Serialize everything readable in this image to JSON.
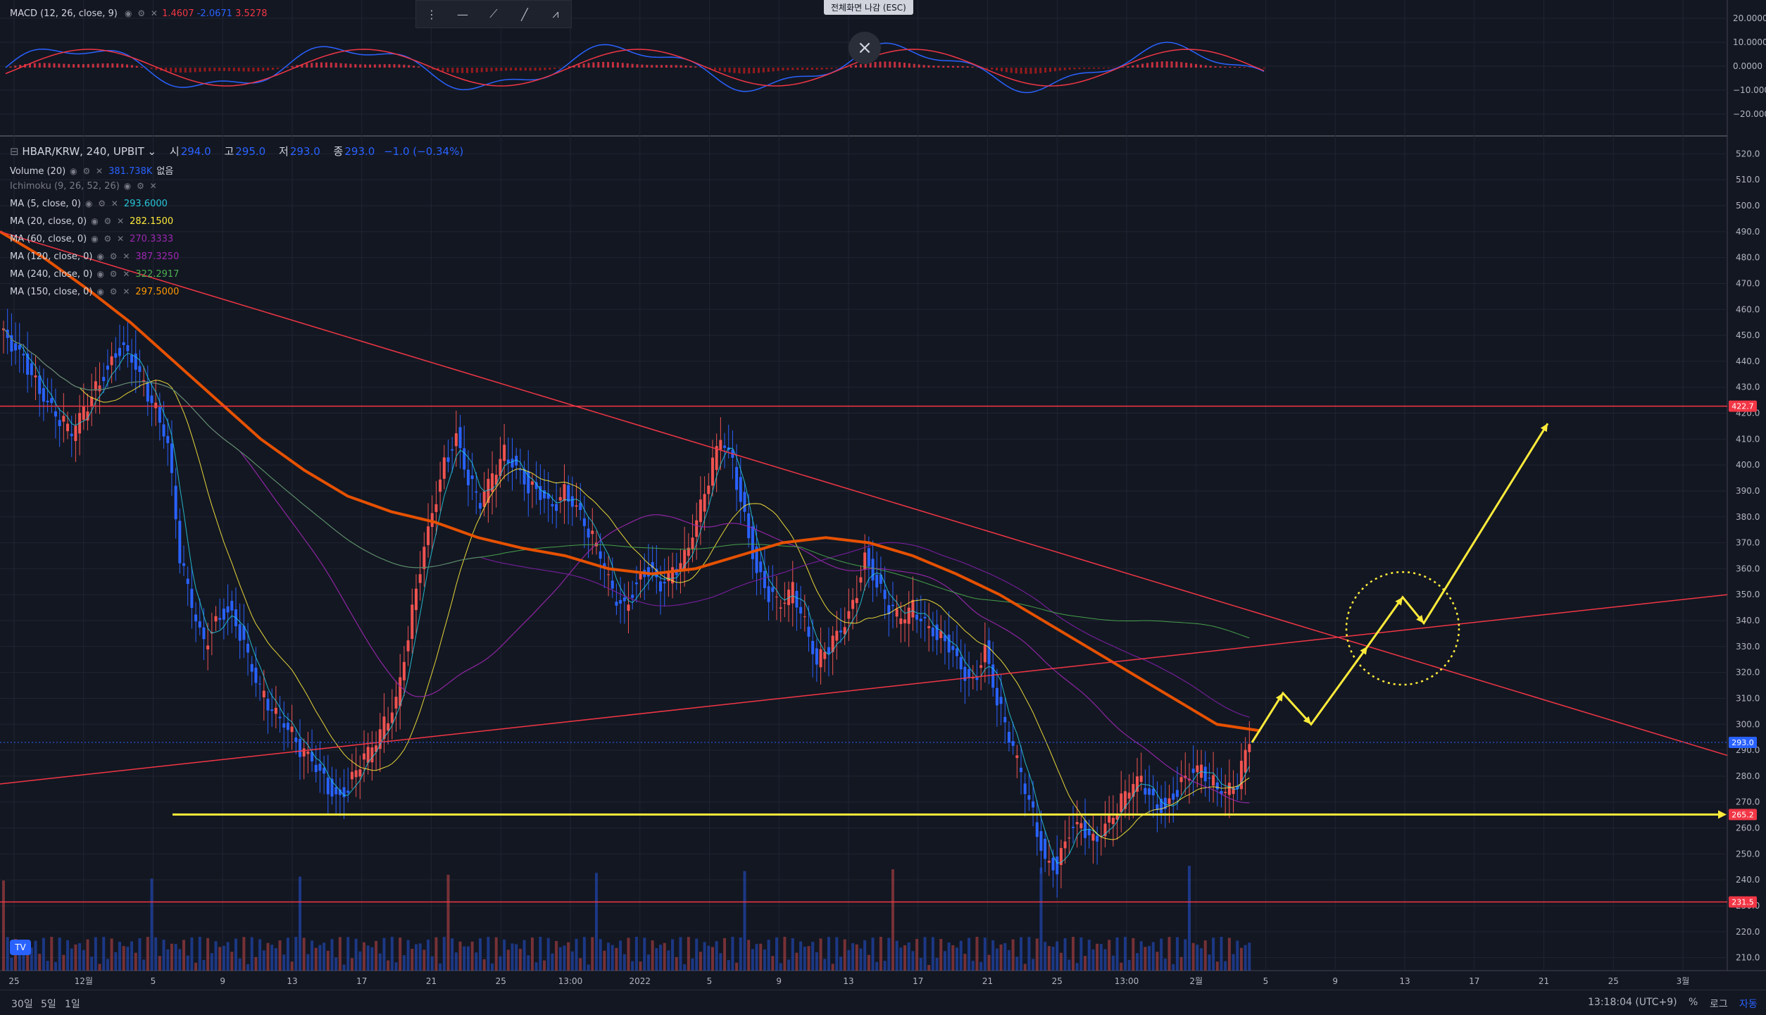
{
  "macd": {
    "label": "MACD (12, 26, close, 9)",
    "values": [
      "1.4607",
      "-2.0671",
      "3.5278"
    ],
    "value_colors": [
      "#f23645",
      "#2962ff",
      "#f23645"
    ],
    "axis_ticks": [
      "20.0000",
      "10.0000",
      "0.0000",
      "−10.0000",
      "−20.0000"
    ]
  },
  "symbol": {
    "title": "HBAR/KRW, 240, UPBIT",
    "open_label": "시",
    "open": "294.0",
    "high_label": "고",
    "high": "295.0",
    "low_label": "저",
    "low": "293.0",
    "close_label": "종",
    "close": "293.0",
    "change": "−1.0 (−0.34%)"
  },
  "indicators": [
    {
      "label": "Volume (20)",
      "value": "381.738K",
      "extra": "없음",
      "color": "#2962ff"
    },
    {
      "label": "Ichimoku (9, 26, 52, 26)",
      "value": "",
      "extra": "",
      "color": "#787b86"
    },
    {
      "label": "MA (5, close, 0)",
      "value": "293.6000",
      "extra": "",
      "color": "#26c6da"
    },
    {
      "label": "MA (20, close, 0)",
      "value": "282.1500",
      "extra": "",
      "color": "#ffeb3b"
    },
    {
      "label": "MA (60, close, 0)",
      "value": "270.3333",
      "extra": "",
      "color": "#9c27b0"
    },
    {
      "label": "MA (120, close, 0)",
      "value": "387.3250",
      "extra": "",
      "color": "#9c27b0"
    },
    {
      "label": "MA (240, close, 0)",
      "value": "322.2917",
      "extra": "",
      "color": "#4caf50"
    },
    {
      "label": "MA (150, close, 0)",
      "value": "297.5000",
      "extra": "",
      "color": "#ff9800"
    }
  ],
  "toolbar": {
    "icons": [
      "drag-handle-icon",
      "horizontal-line-icon",
      "trend-angle-icon",
      "trend-line-icon",
      "pattern-abcd-icon"
    ],
    "fullscreen_hint": "전체화면 나감 (ESC)",
    "close_symbol": "×"
  },
  "chart_data": {
    "type": "candlestick",
    "symbol": "HBAR/KRW",
    "interval": "240",
    "price_axis": {
      "ticks": [
        520,
        510,
        500,
        490,
        480,
        470,
        460,
        450,
        440,
        430,
        420,
        410,
        400,
        390,
        380,
        370,
        360,
        350,
        340,
        330,
        320,
        310,
        300,
        290,
        280,
        270,
        260,
        250,
        240,
        230,
        220,
        210
      ],
      "tick_labels": [
        "520.0",
        "510.0",
        "500.0",
        "490.0",
        "480.0",
        "470.0",
        "460.0",
        "450.0",
        "440.0",
        "430.0",
        "420.0",
        "410.0",
        "400.0",
        "390.0",
        "380.0",
        "370.0",
        "360.0",
        "350.0",
        "340.0",
        "330.0",
        "320.0",
        "310.0",
        "300.0",
        "290.0",
        "280.0",
        "270.0",
        "260.0",
        "250.0",
        "240.0",
        "230.0",
        "220.0",
        "210.0"
      ],
      "ylim": [
        205,
        525
      ]
    },
    "time_axis_labels": [
      "25",
      "12월",
      "5",
      "9",
      "13",
      "17",
      "21",
      "25",
      "13:00",
      "2022",
      "5",
      "9",
      "13",
      "17",
      "21",
      "25",
      "13:00",
      "2월",
      "5",
      "9",
      "13",
      "17",
      "21",
      "25",
      "3월"
    ],
    "price_markers": [
      {
        "value": "422.7",
        "color": "#f23645"
      },
      {
        "value": "293.0",
        "color": "#2962ff"
      },
      {
        "value": "265.2",
        "color": "#f23645"
      },
      {
        "value": "231.5",
        "color": "#f23645"
      }
    ],
    "price_path": [
      452,
      445,
      440,
      432,
      425,
      418,
      412,
      420,
      430,
      438,
      445,
      440,
      430,
      422,
      410,
      365,
      345,
      330,
      340,
      345,
      335,
      320,
      310,
      305,
      300,
      290,
      285,
      278,
      272,
      276,
      285,
      290,
      300,
      310,
      335,
      360,
      380,
      400,
      412,
      395,
      385,
      395,
      405,
      400,
      392,
      388,
      382,
      390,
      385,
      375,
      365,
      350,
      345,
      355,
      360,
      352,
      358,
      365,
      380,
      395,
      410,
      400,
      380,
      360,
      350,
      345,
      352,
      340,
      325,
      330,
      335,
      345,
      365,
      355,
      345,
      340,
      345,
      340,
      335,
      330,
      320,
      315,
      330,
      310,
      295,
      280,
      265,
      248,
      245,
      258,
      260,
      255,
      262,
      268,
      275,
      278,
      270,
      268,
      275,
      280,
      282,
      278,
      275,
      278,
      293
    ],
    "series": [
      {
        "name": "MA (5, close, 0)",
        "color": "#26c6da",
        "last": 293.6
      },
      {
        "name": "MA (20, close, 0)",
        "color": "#ffeb3b",
        "last": 282.15
      },
      {
        "name": "MA (60, close, 0)",
        "color": "#9c27b0",
        "last": 270.3333
      },
      {
        "name": "MA (120, close, 0)",
        "color": "#9c27b0",
        "last": 387.325
      },
      {
        "name": "MA (240, close, 0)",
        "color": "#4caf50",
        "last": 322.2917
      },
      {
        "name": "MA (150, close, 0)",
        "color": "#ff9800",
        "last": 297.5
      }
    ],
    "ma150_path": [
      490,
      480,
      468,
      455,
      440,
      425,
      410,
      398,
      388,
      382,
      378,
      372,
      368,
      365,
      360,
      358,
      360,
      365,
      370,
      372,
      370,
      365,
      358,
      350,
      340,
      330,
      320,
      310,
      300,
      297.5
    ],
    "support_levels": [
      265.2
    ],
    "resistance_levels": [
      422.7,
      231.5
    ],
    "descending_trendline": [
      [
        0,
        490
      ],
      [
        1,
        288
      ]
    ],
    "ascending_trendline": [
      [
        0,
        277
      ],
      [
        1,
        350
      ]
    ],
    "projection_path": [
      293,
      312,
      300,
      330,
      349,
      339,
      416
    ],
    "grid": true
  },
  "bottom": {
    "ranges": [
      "30일",
      "5일",
      "1일"
    ],
    "clock": "13:18:04 (UTC+9)",
    "options": [
      "%",
      "로그",
      "자동"
    ],
    "logo": "TV"
  }
}
